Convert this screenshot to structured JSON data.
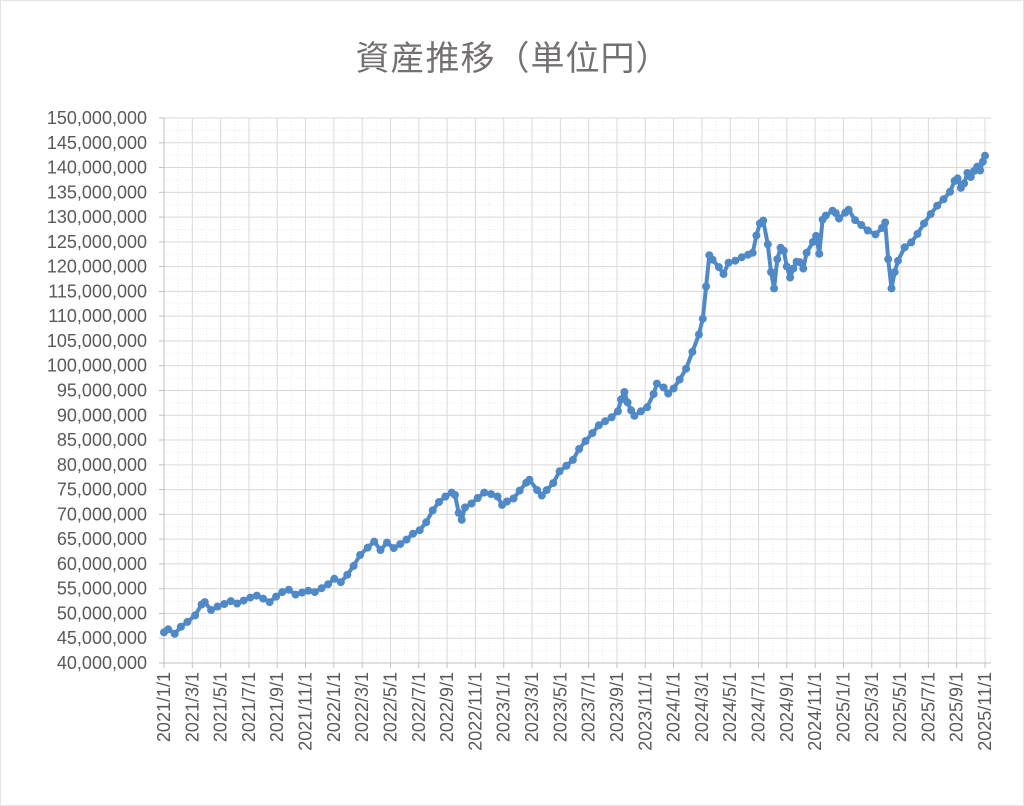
{
  "title": "資産推移（単位円）",
  "colors": {
    "series_line": "#5089C8",
    "title_text": "#757070",
    "tick_text": "#595959",
    "major_grid": "#D9D9D9",
    "minor_grid": "#ECECEC",
    "axis_line": "#C0C0C0",
    "background": "#FFFFFF"
  },
  "chart_data": {
    "type": "line",
    "title": "資産推移（単位円）",
    "series_name": "資産",
    "unit": "円",
    "legend": "none",
    "grid": {
      "major": true,
      "minor_dotted": true
    },
    "y_axis": {
      "min": 40000000,
      "max": 150000000,
      "step": 5000000,
      "minor_step": 2500000,
      "format": "comma"
    },
    "x_axis": {
      "start": "2021/1/1",
      "end": "2025/11/1",
      "tick_every_months": 2,
      "label_rotation": -90
    },
    "x_ticks": [
      "2021/1/1",
      "2021/3/1",
      "2021/5/1",
      "2021/7/1",
      "2021/9/1",
      "2021/11/1",
      "2022/1/1",
      "2022/3/1",
      "2022/5/1",
      "2022/7/1",
      "2022/9/1",
      "2022/11/1",
      "2023/1/1",
      "2023/3/1",
      "2023/5/1",
      "2023/7/1",
      "2023/9/1",
      "2023/11/1",
      "2024/1/1",
      "2024/3/1",
      "2024/5/1",
      "2024/7/1",
      "2024/9/1",
      "2024/11/1",
      "2025/1/1",
      "2025/3/1",
      "2025/5/1",
      "2025/7/1",
      "2025/9/1",
      "2025/11/1"
    ],
    "points": [
      [
        "2021/1/1",
        46200000
      ],
      [
        "2021/1/10",
        46800000
      ],
      [
        "2021/1/24",
        45900000
      ],
      [
        "2021/2/7",
        47300000
      ],
      [
        "2021/2/21",
        48300000
      ],
      [
        "2021/3/7",
        49600000
      ],
      [
        "2021/3/21",
        51800000
      ],
      [
        "2021/3/28",
        52300000
      ],
      [
        "2021/4/11",
        50700000
      ],
      [
        "2021/4/25",
        51400000
      ],
      [
        "2021/5/9",
        51900000
      ],
      [
        "2021/5/23",
        52500000
      ],
      [
        "2021/6/6",
        52000000
      ],
      [
        "2021/6/20",
        52600000
      ],
      [
        "2021/7/4",
        53200000
      ],
      [
        "2021/7/18",
        53600000
      ],
      [
        "2021/8/1",
        53000000
      ],
      [
        "2021/8/15",
        52300000
      ],
      [
        "2021/8/29",
        53400000
      ],
      [
        "2021/9/12",
        54300000
      ],
      [
        "2021/9/26",
        54800000
      ],
      [
        "2021/10/10",
        53800000
      ],
      [
        "2021/10/24",
        54200000
      ],
      [
        "2021/11/7",
        54600000
      ],
      [
        "2021/11/21",
        54300000
      ],
      [
        "2021/12/5",
        55100000
      ],
      [
        "2021/12/19",
        55900000
      ],
      [
        "2022/1/2",
        57000000
      ],
      [
        "2022/1/16",
        56300000
      ],
      [
        "2022/1/30",
        57800000
      ],
      [
        "2022/2/13",
        59600000
      ],
      [
        "2022/2/27",
        61800000
      ],
      [
        "2022/3/13",
        63300000
      ],
      [
        "2022/3/27",
        64500000
      ],
      [
        "2022/4/10",
        62800000
      ],
      [
        "2022/4/24",
        64300000
      ],
      [
        "2022/5/8",
        63200000
      ],
      [
        "2022/5/22",
        64000000
      ],
      [
        "2022/6/5",
        64900000
      ],
      [
        "2022/6/19",
        66100000
      ],
      [
        "2022/7/3",
        66800000
      ],
      [
        "2022/7/17",
        68400000
      ],
      [
        "2022/7/31",
        70800000
      ],
      [
        "2022/8/14",
        72500000
      ],
      [
        "2022/8/28",
        73600000
      ],
      [
        "2022/9/11",
        74400000
      ],
      [
        "2022/9/18",
        73900000
      ],
      [
        "2022/9/26",
        70300000
      ],
      [
        "2022/10/2",
        68900000
      ],
      [
        "2022/10/9",
        71400000
      ],
      [
        "2022/10/23",
        72200000
      ],
      [
        "2022/11/6",
        73300000
      ],
      [
        "2022/11/20",
        74400000
      ],
      [
        "2022/12/4",
        74100000
      ],
      [
        "2022/12/18",
        73600000
      ],
      [
        "2022/12/28",
        71900000
      ],
      [
        "2023/1/8",
        72600000
      ],
      [
        "2023/1/22",
        73200000
      ],
      [
        "2023/2/5",
        74800000
      ],
      [
        "2023/2/19",
        76400000
      ],
      [
        "2023/2/26",
        77000000
      ],
      [
        "2023/3/12",
        74900000
      ],
      [
        "2023/3/22",
        73800000
      ],
      [
        "2023/4/2",
        74900000
      ],
      [
        "2023/4/16",
        76300000
      ],
      [
        "2023/4/30",
        78700000
      ],
      [
        "2023/5/14",
        79800000
      ],
      [
        "2023/5/28",
        81000000
      ],
      [
        "2023/6/11",
        83200000
      ],
      [
        "2023/6/25",
        84800000
      ],
      [
        "2023/7/9",
        86400000
      ],
      [
        "2023/7/23",
        88000000
      ],
      [
        "2023/8/6",
        88800000
      ],
      [
        "2023/8/20",
        89600000
      ],
      [
        "2023/9/3",
        90800000
      ],
      [
        "2023/9/10",
        93200000
      ],
      [
        "2023/9/17",
        94700000
      ],
      [
        "2023/9/24",
        92600000
      ],
      [
        "2023/10/1",
        91000000
      ],
      [
        "2023/10/8",
        89900000
      ],
      [
        "2023/10/22",
        90800000
      ],
      [
        "2023/11/5",
        91600000
      ],
      [
        "2023/11/19",
        94300000
      ],
      [
        "2023/11/26",
        96400000
      ],
      [
        "2023/12/10",
        95600000
      ],
      [
        "2023/12/20",
        94400000
      ],
      [
        "2024/1/1",
        95400000
      ],
      [
        "2024/1/14",
        97200000
      ],
      [
        "2024/1/28",
        99400000
      ],
      [
        "2024/2/11",
        102800000
      ],
      [
        "2024/2/25",
        106300000
      ],
      [
        "2024/3/3",
        109500000
      ],
      [
        "2024/3/10",
        116000000
      ],
      [
        "2024/3/17",
        122300000
      ],
      [
        "2024/3/24",
        121400000
      ],
      [
        "2024/4/7",
        119900000
      ],
      [
        "2024/4/17",
        118500000
      ],
      [
        "2024/4/28",
        120800000
      ],
      [
        "2024/5/12",
        121200000
      ],
      [
        "2024/5/26",
        121900000
      ],
      [
        "2024/6/9",
        122400000
      ],
      [
        "2024/6/19",
        122800000
      ],
      [
        "2024/6/27",
        126300000
      ],
      [
        "2024/7/4",
        128700000
      ],
      [
        "2024/7/11",
        129300000
      ],
      [
        "2024/7/21",
        124500000
      ],
      [
        "2024/7/28",
        118900000
      ],
      [
        "2024/8/4",
        115600000
      ],
      [
        "2024/8/11",
        121500000
      ],
      [
        "2024/8/18",
        123800000
      ],
      [
        "2024/8/25",
        123200000
      ],
      [
        "2024/9/1",
        120000000
      ],
      [
        "2024/9/8",
        117800000
      ],
      [
        "2024/9/15",
        119600000
      ],
      [
        "2024/9/22",
        121000000
      ],
      [
        "2024/9/29",
        120900000
      ],
      [
        "2024/10/6",
        119600000
      ],
      [
        "2024/10/13",
        122800000
      ],
      [
        "2024/10/27",
        125000000
      ],
      [
        "2024/11/3",
        126200000
      ],
      [
        "2024/11/10",
        122600000
      ],
      [
        "2024/11/17",
        129500000
      ],
      [
        "2024/11/24",
        130300000
      ],
      [
        "2024/12/8",
        131300000
      ],
      [
        "2024/12/15",
        130800000
      ],
      [
        "2024/12/22",
        129700000
      ],
      [
        "2025/1/5",
        130900000
      ],
      [
        "2025/1/12",
        131500000
      ],
      [
        "2025/1/26",
        129400000
      ],
      [
        "2025/2/9",
        128400000
      ],
      [
        "2025/2/23",
        127300000
      ],
      [
        "2025/3/9",
        126500000
      ],
      [
        "2025/3/23",
        127800000
      ],
      [
        "2025/3/30",
        128900000
      ],
      [
        "2025/4/6",
        121500000
      ],
      [
        "2025/4/13",
        115600000
      ],
      [
        "2025/4/20",
        118900000
      ],
      [
        "2025/4/27",
        121200000
      ],
      [
        "2025/5/11",
        123900000
      ],
      [
        "2025/5/25",
        124900000
      ],
      [
        "2025/6/8",
        126600000
      ],
      [
        "2025/6/22",
        128700000
      ],
      [
        "2025/7/6",
        130600000
      ],
      [
        "2025/7/20",
        132300000
      ],
      [
        "2025/8/3",
        133600000
      ],
      [
        "2025/8/17",
        135100000
      ],
      [
        "2025/8/27",
        137300000
      ],
      [
        "2025/9/3",
        137800000
      ],
      [
        "2025/9/10",
        135900000
      ],
      [
        "2025/9/17",
        136800000
      ],
      [
        "2025/9/24",
        138900000
      ],
      [
        "2025/10/1",
        138100000
      ],
      [
        "2025/10/8",
        139300000
      ],
      [
        "2025/10/15",
        140200000
      ],
      [
        "2025/10/21",
        139400000
      ],
      [
        "2025/10/27",
        141200000
      ],
      [
        "2025/11/1",
        142400000
      ]
    ]
  }
}
